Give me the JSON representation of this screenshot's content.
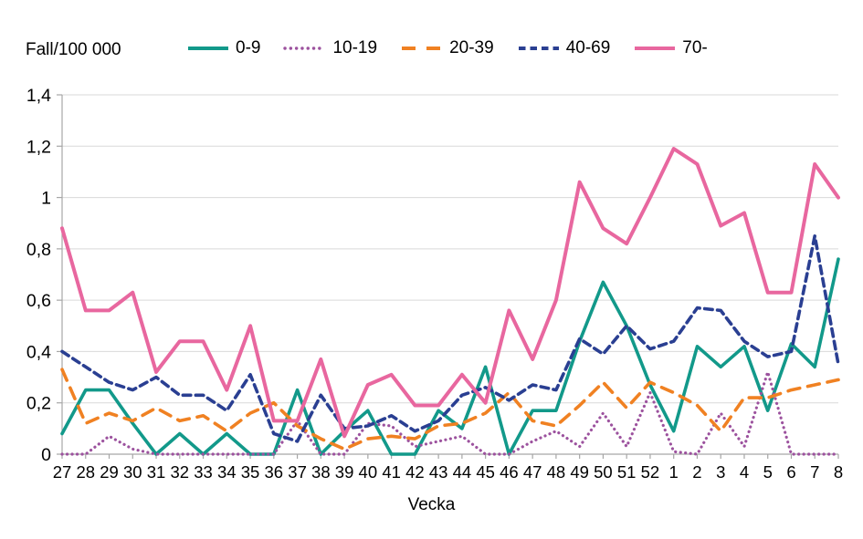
{
  "chart_data": {
    "type": "line",
    "title": "",
    "ylabel": "Fall/100 000",
    "xlabel": "Vecka",
    "ylim": [
      0,
      1.4
    ],
    "grid": true,
    "legend_position": "top",
    "axis_color": "#a6a6a6",
    "gridline_color": "#d9d9d9",
    "y_ticks": [
      "0",
      "0,2",
      "0,4",
      "0,6",
      "0,8",
      "1",
      "1,2",
      "1,4"
    ],
    "x": [
      "27",
      "28",
      "29",
      "30",
      "31",
      "32",
      "33",
      "34",
      "35",
      "36",
      "37",
      "38",
      "39",
      "40",
      "41",
      "42",
      "43",
      "44",
      "45",
      "46",
      "47",
      "48",
      "49",
      "50",
      "51",
      "52",
      "1",
      "2",
      "3",
      "4",
      "5",
      "6",
      "7",
      "8"
    ],
    "series": [
      {
        "name": "0-9",
        "color": "#12998a",
        "style": "solid",
        "values": [
          0.08,
          0.25,
          0.25,
          0.12,
          0.0,
          0.08,
          0.0,
          0.08,
          0.0,
          0.0,
          0.25,
          0.0,
          0.09,
          0.17,
          0.0,
          0.0,
          0.17,
          0.1,
          0.34,
          0.0,
          0.17,
          0.17,
          0.44,
          0.67,
          0.5,
          0.27,
          0.09,
          0.42,
          0.34,
          0.42,
          0.17,
          0.43,
          0.34,
          0.76
        ]
      },
      {
        "name": "10-19",
        "color": "#9c529e",
        "style": "dotted",
        "values": [
          0.0,
          0.0,
          0.07,
          0.02,
          0.0,
          0.0,
          0.0,
          0.0,
          0.0,
          0.0,
          0.13,
          0.0,
          0.0,
          0.12,
          0.11,
          0.03,
          0.05,
          0.07,
          0.0,
          0.0,
          0.05,
          0.09,
          0.03,
          0.16,
          0.03,
          0.24,
          0.01,
          0.0,
          0.16,
          0.03,
          0.32,
          0.0,
          0.0,
          0.0
        ]
      },
      {
        "name": "20-39",
        "color": "#f08122",
        "style": "dashed-long",
        "values": [
          0.33,
          0.12,
          0.16,
          0.13,
          0.18,
          0.13,
          0.15,
          0.09,
          0.16,
          0.2,
          0.11,
          0.06,
          0.02,
          0.06,
          0.07,
          0.06,
          0.11,
          0.12,
          0.16,
          0.24,
          0.13,
          0.11,
          0.19,
          0.28,
          0.18,
          0.28,
          0.24,
          0.19,
          0.09,
          0.22,
          0.22,
          0.25,
          0.27,
          0.29
        ]
      },
      {
        "name": "40-69",
        "color": "#2a3f92",
        "style": "dashed",
        "values": [
          0.4,
          0.34,
          0.28,
          0.25,
          0.3,
          0.23,
          0.23,
          0.17,
          0.31,
          0.08,
          0.05,
          0.23,
          0.1,
          0.11,
          0.15,
          0.09,
          0.13,
          0.23,
          0.26,
          0.21,
          0.27,
          0.25,
          0.45,
          0.39,
          0.5,
          0.41,
          0.44,
          0.57,
          0.56,
          0.44,
          0.38,
          0.4,
          0.85,
          0.35
        ]
      },
      {
        "name": "70-",
        "color": "#e8679f",
        "style": "solid",
        "values": [
          0.88,
          0.56,
          0.56,
          0.63,
          0.32,
          0.44,
          0.44,
          0.25,
          0.5,
          0.13,
          0.13,
          0.37,
          0.07,
          0.27,
          0.31,
          0.19,
          0.19,
          0.31,
          0.2,
          0.56,
          0.37,
          0.6,
          1.06,
          0.88,
          0.82,
          1.0,
          1.19,
          1.13,
          0.89,
          0.94,
          0.63,
          0.63,
          1.13,
          1.0
        ]
      }
    ]
  }
}
